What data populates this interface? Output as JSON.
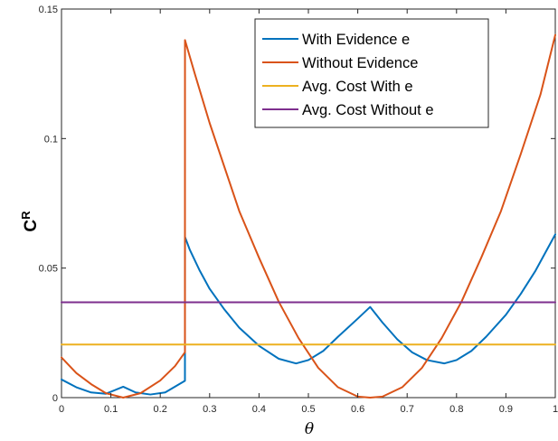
{
  "chart_data": {
    "type": "line",
    "title": "",
    "xlabel": "θ",
    "ylabel": "C",
    "ylabel_superscript": "R",
    "xlim": [
      0,
      1
    ],
    "ylim": [
      0,
      0.15
    ],
    "x_ticks": [
      "0",
      "0.1",
      "0.2",
      "0.3",
      "0.4",
      "0.5",
      "0.6",
      "0.7",
      "0.8",
      "0.9",
      "1"
    ],
    "y_ticks": [
      "0",
      "0.05",
      "0.1",
      "0.15"
    ],
    "y_tick_values": [
      0,
      0.05,
      0.1,
      0.15
    ],
    "legend_position": "top-right",
    "grid": false,
    "series": [
      {
        "name": "With Evidence e",
        "color": "#0072BD",
        "x": [
          0,
          0.03,
          0.06,
          0.09,
          0.125,
          0.15,
          0.18,
          0.21,
          0.25,
          0.2501,
          0.26,
          0.28,
          0.3,
          0.33,
          0.36,
          0.4,
          0.44,
          0.475,
          0.5,
          0.53,
          0.56,
          0.6,
          0.625,
          0.65,
          0.68,
          0.71,
          0.74,
          0.775,
          0.8,
          0.83,
          0.86,
          0.9,
          0.93,
          0.96,
          1.0
        ],
        "y": [
          0.007,
          0.004,
          0.002,
          0.0015,
          0.0042,
          0.002,
          0.0012,
          0.002,
          0.0065,
          0.062,
          0.057,
          0.049,
          0.042,
          0.034,
          0.027,
          0.02,
          0.015,
          0.0132,
          0.0145,
          0.018,
          0.0235,
          0.0305,
          0.035,
          0.029,
          0.0225,
          0.0175,
          0.0145,
          0.0132,
          0.0145,
          0.018,
          0.0235,
          0.032,
          0.04,
          0.049,
          0.063
        ]
      },
      {
        "name": "Without Evidence",
        "color": "#D95319",
        "x": [
          0,
          0.03,
          0.06,
          0.09,
          0.125,
          0.16,
          0.2,
          0.23,
          0.25,
          0.2501,
          0.27,
          0.3,
          0.33,
          0.36,
          0.4,
          0.44,
          0.48,
          0.52,
          0.56,
          0.6,
          0.625,
          0.65,
          0.69,
          0.73,
          0.77,
          0.81,
          0.85,
          0.89,
          0.93,
          0.97,
          1.0
        ],
        "y": [
          0.0155,
          0.0095,
          0.0052,
          0.0017,
          0.0,
          0.0017,
          0.0066,
          0.0122,
          0.0175,
          0.138,
          0.125,
          0.106,
          0.089,
          0.072,
          0.054,
          0.037,
          0.023,
          0.0115,
          0.004,
          0.0004,
          0.0,
          0.0004,
          0.004,
          0.0115,
          0.023,
          0.037,
          0.054,
          0.072,
          0.094,
          0.117,
          0.14
        ]
      },
      {
        "name": "Avg. Cost With e",
        "color": "#EDB120",
        "x": [
          0,
          1
        ],
        "y": [
          0.0205,
          0.0205
        ]
      },
      {
        "name": "Avg. Cost Without e",
        "color": "#7E2F8E",
        "x": [
          0,
          1
        ],
        "y": [
          0.0368,
          0.0368
        ]
      }
    ]
  }
}
